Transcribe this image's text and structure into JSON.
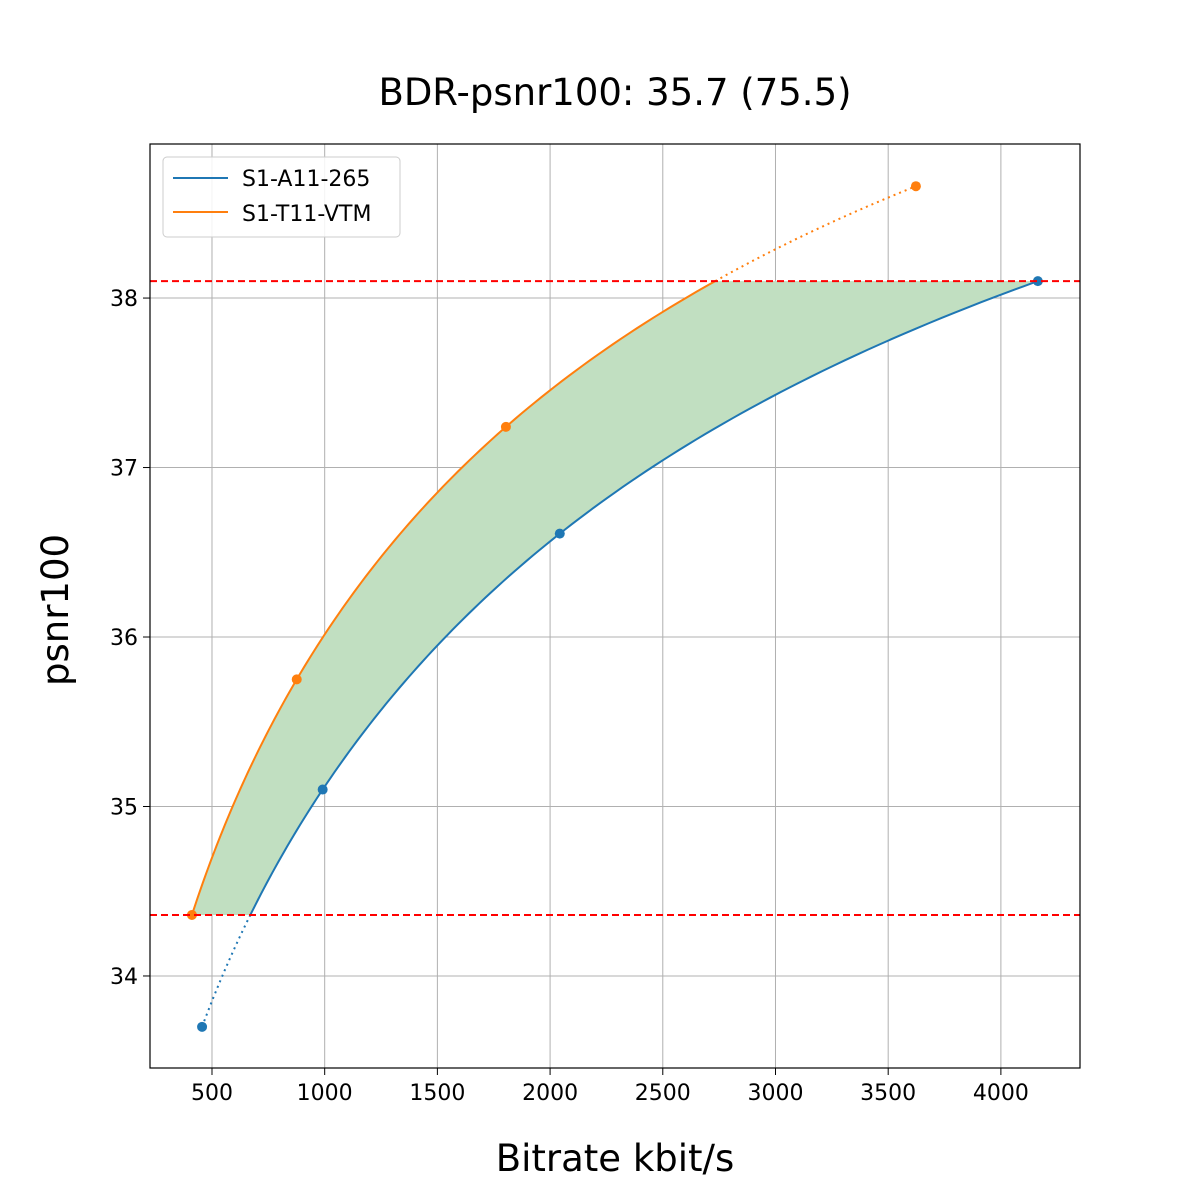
{
  "chart_data": {
    "type": "line",
    "title": "BDR-psnr100: 35.7 (75.5)",
    "xlabel": "Bitrate kbit/s",
    "ylabel": "psnr100",
    "xlim": [
      225,
      4351
    ],
    "ylim": [
      33.457,
      38.909
    ],
    "xticks": [
      500,
      1000,
      1500,
      2000,
      2500,
      3000,
      3500,
      4000
    ],
    "yticks": [
      34,
      35,
      36,
      37,
      38
    ],
    "grid": true,
    "legend_position": "top-left",
    "series": [
      {
        "name": "S1-A11-265",
        "color": "#1f77b4",
        "x": [
          456,
          991,
          2043,
          4164
        ],
        "y": [
          33.7,
          35.1,
          36.61,
          38.1
        ]
      },
      {
        "name": "S1-T11-VTM",
        "color": "#ff7f0e",
        "x": [
          411,
          876,
          1804,
          3623
        ],
        "y": [
          34.36,
          35.75,
          37.24,
          38.66
        ]
      }
    ],
    "reference_lines": {
      "y": [
        34.36,
        38.1
      ],
      "color": "#ff0000",
      "style": "dashed"
    },
    "fill_between": {
      "color": "#c1dfc1",
      "y_range": [
        34.36,
        38.1
      ]
    }
  }
}
